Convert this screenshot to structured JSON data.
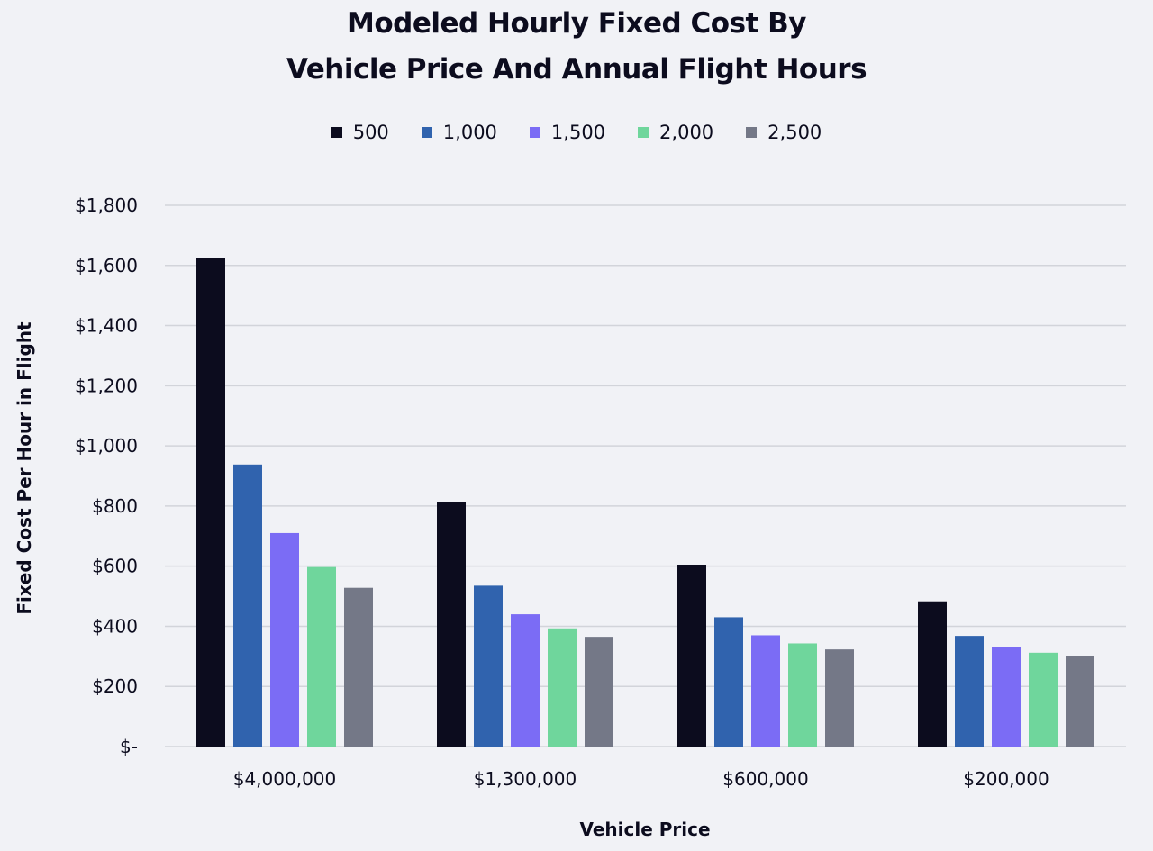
{
  "chart_data": {
    "type": "bar",
    "title": "Modeled Hourly Fixed Cost By",
    "subtitle": "Vehicle Price And Annual Flight Hours",
    "xlabel": "Vehicle Price",
    "ylabel": "Fixed Cost Per Hour in Flight",
    "categories": [
      "$4,000,000",
      "$1,300,000",
      "$600,000",
      "$200,000"
    ],
    "y_ticks": [
      "$-",
      "$200",
      "$400",
      "$600",
      "$800",
      "$1,000",
      "$1,200",
      "$1,400",
      "$1,600",
      "$1,800"
    ],
    "ylim": [
      0,
      1800
    ],
    "grid": true,
    "legend_position": "top-center",
    "series": [
      {
        "name": "500",
        "color": "#0c0c1e",
        "values": [
          1625,
          812,
          605,
          483
        ]
      },
      {
        "name": "1,000",
        "color": "#3063ae",
        "values": [
          938,
          535,
          430,
          368
        ]
      },
      {
        "name": "1,500",
        "color": "#7b6cf5",
        "values": [
          710,
          440,
          370,
          330
        ]
      },
      {
        "name": "2,000",
        "color": "#6fd69c",
        "values": [
          597,
          393,
          343,
          312
        ]
      },
      {
        "name": "2,500",
        "color": "#747887",
        "values": [
          528,
          365,
          323,
          300
        ]
      }
    ]
  }
}
